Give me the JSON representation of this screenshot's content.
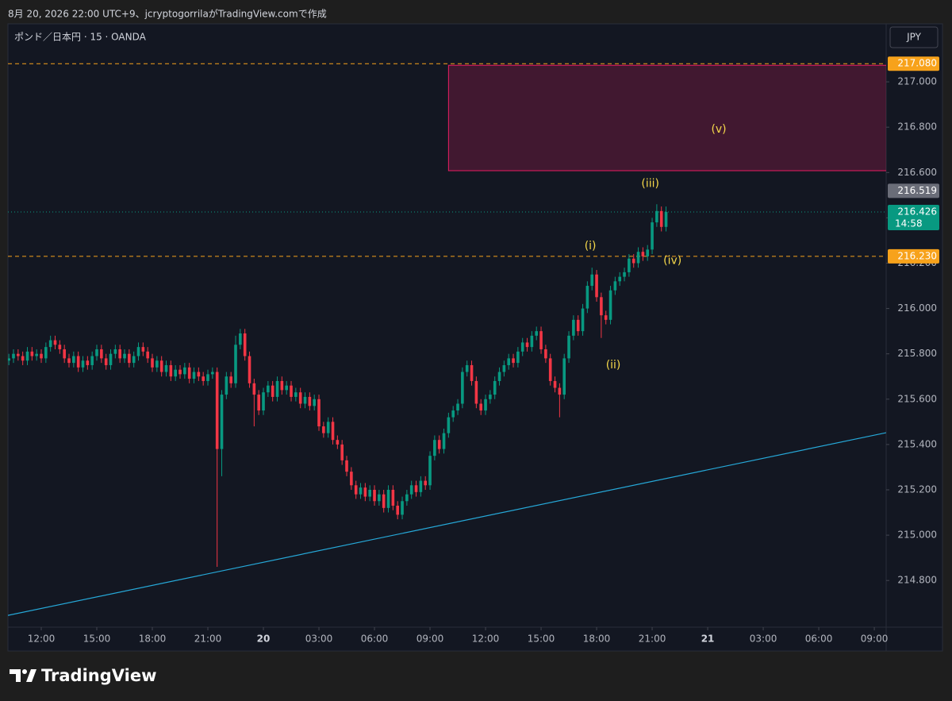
{
  "header": {
    "caption": "8月 20, 2026 22:00 UTC+9、jcryptogorrilaがTradingView.comで作成",
    "brand": "TradingView"
  },
  "chart_data": {
    "type": "candlestick",
    "title": "ポンド／日本円 · 15 · OANDA",
    "currency": "JPY",
    "up_color": "#089981",
    "down_color": "#f23645",
    "x": [
      10.25,
      10.5,
      10.75,
      11,
      11.25,
      11.5,
      11.75,
      12,
      12.25,
      12.5,
      12.75,
      13,
      13.25,
      13.5,
      13.75,
      14,
      14.25,
      14.5,
      14.75,
      15,
      15.25,
      15.5,
      15.75,
      16,
      16.25,
      16.5,
      16.75,
      17,
      17.25,
      17.5,
      17.75,
      18,
      18.25,
      18.5,
      18.75,
      19,
      19.25,
      19.5,
      19.75,
      20,
      20.25,
      20.5,
      20.75,
      21,
      21.25,
      21.5,
      21.75,
      22,
      22.25,
      22.5,
      22.75,
      23,
      23.25,
      23.5,
      23.75,
      24,
      24.25,
      24.5,
      24.75,
      25,
      25.25,
      25.5,
      25.75,
      26,
      26.25,
      26.5,
      26.75,
      27,
      27.25,
      27.5,
      27.75,
      28,
      28.25,
      28.5,
      28.75,
      29,
      29.25,
      29.5,
      29.75,
      30,
      30.25,
      30.5,
      30.75,
      31,
      31.25,
      31.5,
      31.75,
      32,
      32.25,
      32.5,
      32.75,
      33,
      33.25,
      33.5,
      33.75,
      34,
      34.25,
      34.5,
      34.75,
      35,
      35.25,
      35.5,
      35.75,
      36,
      36.25,
      36.5,
      36.75,
      37,
      37.25,
      37.5,
      37.75,
      38,
      38.25,
      38.5,
      38.75,
      39,
      39.25,
      39.5,
      39.75,
      40,
      40.25,
      40.5,
      40.75,
      41,
      41.25,
      41.5,
      41.75,
      42,
      42.25,
      42.5,
      42.75,
      43,
      43.25,
      43.5,
      43.75,
      44,
      44.25,
      44.5,
      44.75,
      45,
      45.25,
      45.5,
      45.75
    ],
    "open": [
      215.77,
      215.78,
      215.8,
      215.79,
      215.77,
      215.81,
      215.79,
      215.8,
      215.78,
      215.83,
      215.86,
      215.84,
      215.82,
      215.78,
      215.76,
      215.79,
      215.74,
      215.77,
      215.75,
      215.79,
      215.82,
      215.78,
      215.75,
      215.8,
      215.82,
      215.78,
      215.8,
      215.76,
      215.79,
      215.83,
      215.81,
      215.78,
      215.74,
      215.77,
      215.72,
      215.75,
      215.7,
      215.73,
      215.71,
      215.74,
      215.69,
      215.72,
      215.7,
      215.68,
      215.71,
      215.72,
      215.38,
      215.62,
      215.7,
      215.67,
      215.84,
      215.89,
      215.79,
      215.67,
      215.62,
      215.55,
      215.63,
      215.66,
      215.61,
      215.68,
      215.64,
      215.66,
      215.61,
      215.63,
      215.58,
      215.61,
      215.57,
      215.6,
      215.48,
      215.45,
      215.5,
      215.42,
      215.4,
      215.33,
      215.28,
      215.22,
      215.18,
      215.21,
      215.17,
      215.2,
      215.15,
      215.18,
      215.12,
      215.2,
      215.13,
      215.09,
      215.15,
      215.18,
      215.22,
      215.19,
      215.24,
      215.22,
      215.35,
      215.42,
      215.38,
      215.45,
      215.52,
      215.55,
      215.58,
      215.72,
      215.75,
      215.68,
      215.58,
      215.55,
      215.6,
      215.62,
      215.68,
      215.72,
      215.75,
      215.78,
      215.76,
      215.81,
      215.85,
      215.83,
      215.88,
      215.9,
      215.82,
      215.78,
      215.68,
      215.65,
      215.62,
      215.78,
      215.88,
      215.95,
      215.9,
      216,
      216.1,
      216.15,
      216.05,
      215.97,
      215.95,
      216.08,
      216.12,
      216.14,
      216.16,
      216.22,
      216.2,
      216.25,
      216.23,
      216.26,
      216.38,
      216.43,
      216.36
    ],
    "high": [
      215.8,
      215.82,
      215.82,
      215.81,
      215.83,
      215.83,
      215.82,
      215.82,
      215.85,
      215.88,
      215.88,
      215.86,
      215.84,
      215.8,
      215.81,
      215.81,
      215.79,
      215.79,
      215.81,
      215.84,
      215.84,
      215.8,
      215.82,
      215.84,
      215.84,
      215.82,
      215.82,
      215.81,
      215.85,
      215.85,
      215.83,
      215.8,
      215.79,
      215.79,
      215.77,
      215.77,
      215.75,
      215.75,
      215.76,
      215.76,
      215.74,
      215.74,
      215.72,
      215.73,
      215.74,
      215.74,
      215.64,
      215.72,
      215.72,
      215.88,
      215.91,
      215.91,
      215.81,
      215.69,
      215.64,
      215.65,
      215.68,
      215.68,
      215.7,
      215.7,
      215.68,
      215.68,
      215.65,
      215.65,
      215.63,
      215.63,
      215.62,
      215.62,
      215.5,
      215.52,
      215.52,
      215.44,
      215.42,
      215.35,
      215.3,
      215.24,
      215.23,
      215.23,
      215.22,
      215.22,
      215.2,
      215.2,
      215.22,
      215.22,
      215.15,
      215.17,
      215.2,
      215.24,
      215.24,
      215.26,
      215.26,
      215.37,
      215.44,
      215.44,
      215.47,
      215.54,
      215.57,
      215.6,
      215.74,
      215.77,
      215.77,
      215.7,
      215.6,
      215.62,
      215.64,
      215.7,
      215.74,
      215.77,
      215.8,
      215.8,
      215.83,
      215.87,
      215.87,
      215.9,
      215.92,
      215.92,
      215.84,
      215.8,
      215.7,
      215.67,
      215.8,
      215.9,
      215.97,
      215.97,
      216.02,
      216.12,
      216.18,
      216.17,
      216.07,
      215.99,
      216.1,
      216.14,
      216.16,
      216.18,
      216.24,
      216.24,
      216.27,
      216.27,
      216.28,
      216.4,
      216.46,
      216.45,
      216.45
    ],
    "low": [
      215.75,
      215.76,
      215.77,
      215.75,
      215.75,
      215.77,
      215.77,
      215.76,
      215.76,
      215.81,
      215.82,
      215.8,
      215.76,
      215.74,
      215.74,
      215.72,
      215.72,
      215.73,
      215.73,
      215.77,
      215.76,
      215.73,
      215.73,
      215.78,
      215.76,
      215.76,
      215.74,
      215.74,
      215.77,
      215.79,
      215.76,
      215.72,
      215.72,
      215.7,
      215.7,
      215.68,
      215.68,
      215.69,
      215.69,
      215.67,
      215.67,
      215.68,
      215.66,
      215.66,
      215.69,
      214.86,
      215.26,
      215.6,
      215.65,
      215.65,
      215.82,
      215.77,
      215.65,
      215.48,
      215.53,
      215.53,
      215.61,
      215.59,
      215.59,
      215.62,
      215.62,
      215.59,
      215.59,
      215.56,
      215.56,
      215.55,
      215.55,
      215.46,
      215.43,
      215.43,
      215.4,
      215.38,
      215.31,
      215.26,
      215.2,
      215.16,
      215.16,
      215.15,
      215.15,
      215.13,
      215.13,
      215.1,
      215.1,
      215.11,
      215.07,
      215.07,
      215.13,
      215.16,
      215.17,
      215.17,
      215.2,
      215.2,
      215.33,
      215.36,
      215.36,
      215.43,
      215.5,
      215.53,
      215.56,
      215.7,
      215.66,
      215.56,
      215.53,
      215.53,
      215.58,
      215.6,
      215.66,
      215.7,
      215.73,
      215.74,
      215.74,
      215.79,
      215.81,
      215.81,
      215.86,
      215.8,
      215.76,
      215.66,
      215.63,
      215.52,
      215.6,
      215.76,
      215.86,
      215.88,
      215.88,
      215.98,
      216.08,
      216.03,
      215.87,
      215.93,
      215.93,
      216.06,
      216.1,
      216.12,
      216.14,
      216.18,
      216.18,
      216.21,
      216.21,
      216.24,
      216.36,
      216.34,
      216.34
    ],
    "close": [
      215.78,
      215.8,
      215.79,
      215.77,
      215.81,
      215.79,
      215.8,
      215.78,
      215.83,
      215.86,
      215.84,
      215.82,
      215.78,
      215.76,
      215.79,
      215.74,
      215.77,
      215.75,
      215.79,
      215.82,
      215.78,
      215.75,
      215.8,
      215.82,
      215.78,
      215.8,
      215.76,
      215.79,
      215.83,
      215.81,
      215.78,
      215.74,
      215.77,
      215.72,
      215.75,
      215.7,
      215.73,
      215.71,
      215.74,
      215.69,
      215.72,
      215.7,
      215.68,
      215.71,
      215.72,
      215.38,
      215.62,
      215.7,
      215.67,
      215.84,
      215.89,
      215.79,
      215.67,
      215.62,
      215.55,
      215.63,
      215.66,
      215.61,
      215.68,
      215.64,
      215.66,
      215.61,
      215.63,
      215.58,
      215.61,
      215.57,
      215.6,
      215.48,
      215.45,
      215.5,
      215.42,
      215.4,
      215.33,
      215.28,
      215.22,
      215.18,
      215.21,
      215.17,
      215.2,
      215.15,
      215.18,
      215.12,
      215.2,
      215.13,
      215.09,
      215.15,
      215.18,
      215.22,
      215.19,
      215.24,
      215.22,
      215.35,
      215.42,
      215.38,
      215.45,
      215.52,
      215.55,
      215.58,
      215.72,
      215.75,
      215.68,
      215.58,
      215.55,
      215.6,
      215.62,
      215.68,
      215.72,
      215.75,
      215.78,
      215.76,
      215.81,
      215.85,
      215.83,
      215.88,
      215.9,
      215.82,
      215.78,
      215.68,
      215.65,
      215.62,
      215.78,
      215.88,
      215.95,
      215.9,
      216,
      216.1,
      216.15,
      216.05,
      215.97,
      215.95,
      216.08,
      216.12,
      216.14,
      216.16,
      216.22,
      216.2,
      216.25,
      216.23,
      216.26,
      216.38,
      216.43,
      216.36,
      216.426
    ],
    "xlim": [
      10.2,
      57.64
    ],
    "ylim": [
      214.594,
      217.256
    ],
    "xticks": [
      {
        "value": 12,
        "label": "12:00"
      },
      {
        "value": 15,
        "label": "15:00"
      },
      {
        "value": 18,
        "label": "18:00"
      },
      {
        "value": 21,
        "label": "21:00"
      },
      {
        "value": 24,
        "label": "20"
      },
      {
        "value": 27,
        "label": "03:00"
      },
      {
        "value": 30,
        "label": "06:00"
      },
      {
        "value": 33,
        "label": "09:00"
      },
      {
        "value": 36,
        "label": "12:00"
      },
      {
        "value": 39,
        "label": "15:00"
      },
      {
        "value": 42,
        "label": "18:00"
      },
      {
        "value": 45,
        "label": "21:00"
      },
      {
        "value": 48,
        "label": "21"
      },
      {
        "value": 51,
        "label": "03:00"
      },
      {
        "value": 54,
        "label": "06:00"
      },
      {
        "value": 57,
        "label": "09:00"
      }
    ],
    "yticks": [
      {
        "value": 214.8,
        "label": "214.800"
      },
      {
        "value": 215,
        "label": "215.000"
      },
      {
        "value": 215.2,
        "label": "215.200"
      },
      {
        "value": 215.4,
        "label": "215.400"
      },
      {
        "value": 215.6,
        "label": "215.600"
      },
      {
        "value": 215.8,
        "label": "215.800"
      },
      {
        "value": 216,
        "label": "216.000"
      },
      {
        "value": 216.2,
        "label": "216.200"
      },
      {
        "value": 216.4,
        "label": "216.400"
      },
      {
        "value": 216.6,
        "label": "216.600"
      },
      {
        "value": 216.8,
        "label": "216.800"
      },
      {
        "value": 217,
        "label": "217.000"
      }
    ],
    "levels": [
      {
        "value": 217.08,
        "label": "217.080",
        "color": "#f7a21b"
      },
      {
        "value": 216.23,
        "label": "216.230",
        "color": "#f7a21b"
      }
    ],
    "marker_price": {
      "value": 216.519,
      "label": "216.519",
      "color": "#6a6d78"
    },
    "last_price": {
      "value": 216.426,
      "label": "216.426",
      "countdown": "14:58",
      "color": "#089981"
    },
    "zone": {
      "x": 34,
      "top": 217.073,
      "bottom": 216.608,
      "color": "#e91e63"
    },
    "trendline": {
      "x": [
        10.2,
        57.64
      ],
      "y": [
        214.646,
        215.452
      ],
      "color": "#26a9d9"
    },
    "annotations": [
      {
        "text": "(i)",
        "x": 41.66,
        "y": 216.275
      },
      {
        "text": "(ii)",
        "x": 42.9,
        "y": 215.75
      },
      {
        "text": "(iii)",
        "x": 44.9,
        "y": 216.55
      },
      {
        "text": "(iv)",
        "x": 46.1,
        "y": 216.21
      },
      {
        "text": "(v)",
        "x": 48.6,
        "y": 216.79
      }
    ]
  }
}
